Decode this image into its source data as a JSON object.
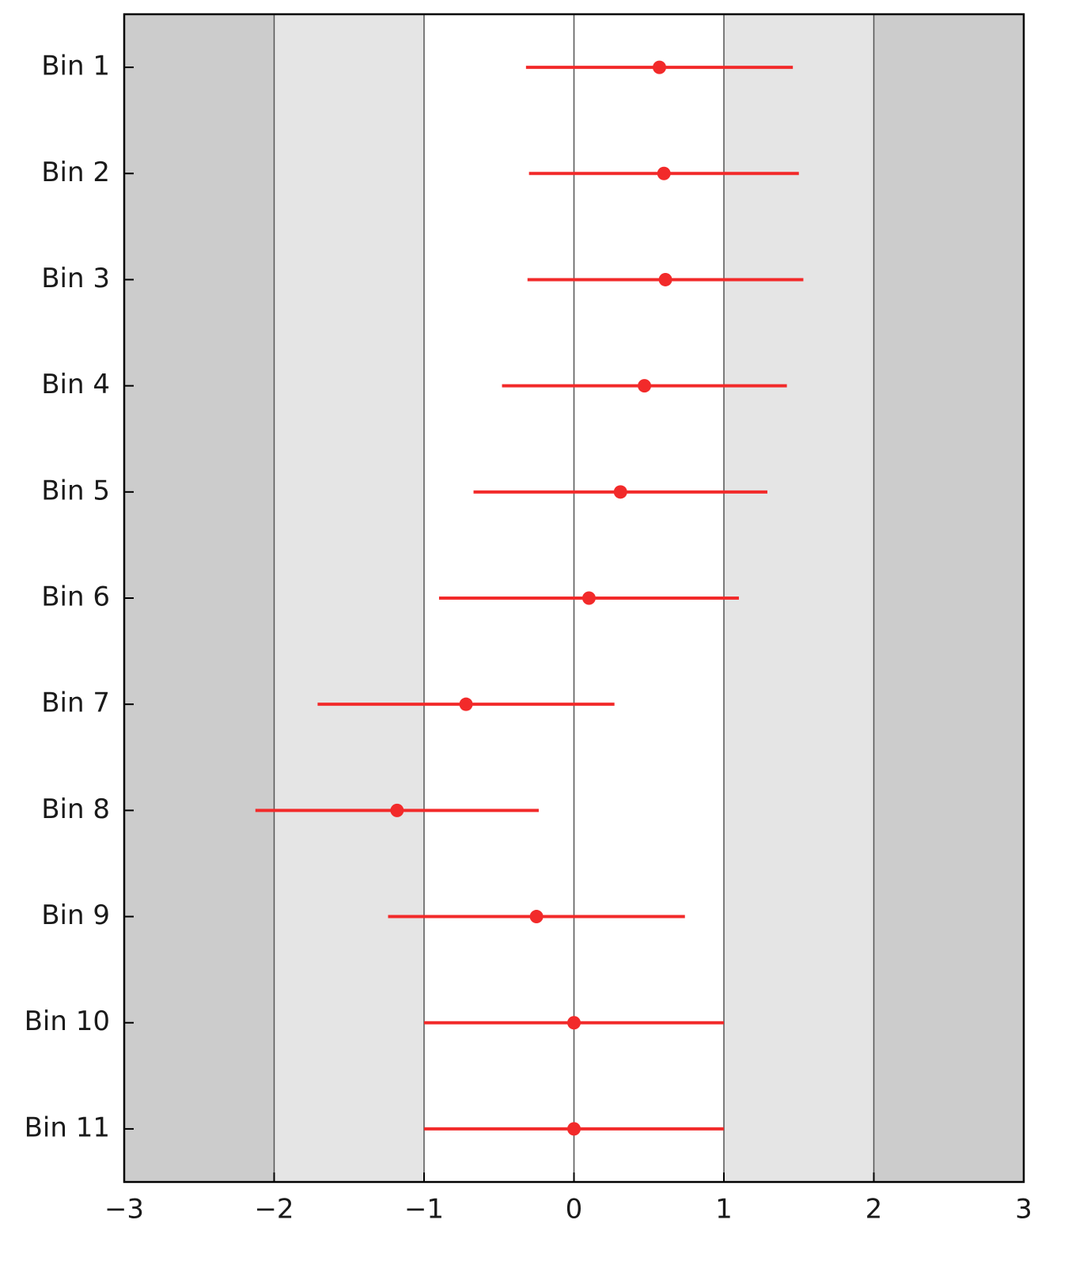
{
  "chart_data": {
    "type": "errorbar",
    "categories": [
      "Bin 1",
      "Bin 2",
      "Bin 3",
      "Bin 4",
      "Bin 5",
      "Bin 6",
      "Bin 7",
      "Bin 8",
      "Bin 9",
      "Bin 10",
      "Bin 11"
    ],
    "values": [
      0.57,
      0.6,
      0.61,
      0.47,
      0.31,
      0.1,
      -0.72,
      -1.18,
      -0.25,
      0,
      0
    ],
    "errors": [
      0.89,
      0.9,
      0.92,
      0.95,
      0.98,
      1.0,
      0.99,
      0.945,
      0.99,
      1,
      1
    ],
    "color": "#f22a2a",
    "xlim": [
      -3,
      3
    ],
    "xticks": [
      {
        "value": -3,
        "label": "−3"
      },
      {
        "value": -2,
        "label": "−2"
      },
      {
        "value": -1,
        "label": "−1"
      },
      0,
      1,
      2,
      3
    ],
    "grid": true,
    "bands": [
      {
        "range": [
          -3,
          -2
        ],
        "color": "#cccccc"
      },
      {
        "range": [
          -2,
          -1
        ],
        "color": "#e5e5e5"
      },
      {
        "range": [
          1,
          2
        ],
        "color": "#e5e5e5"
      },
      {
        "range": [
          2,
          3
        ],
        "color": "#cccccc"
      }
    ]
  }
}
